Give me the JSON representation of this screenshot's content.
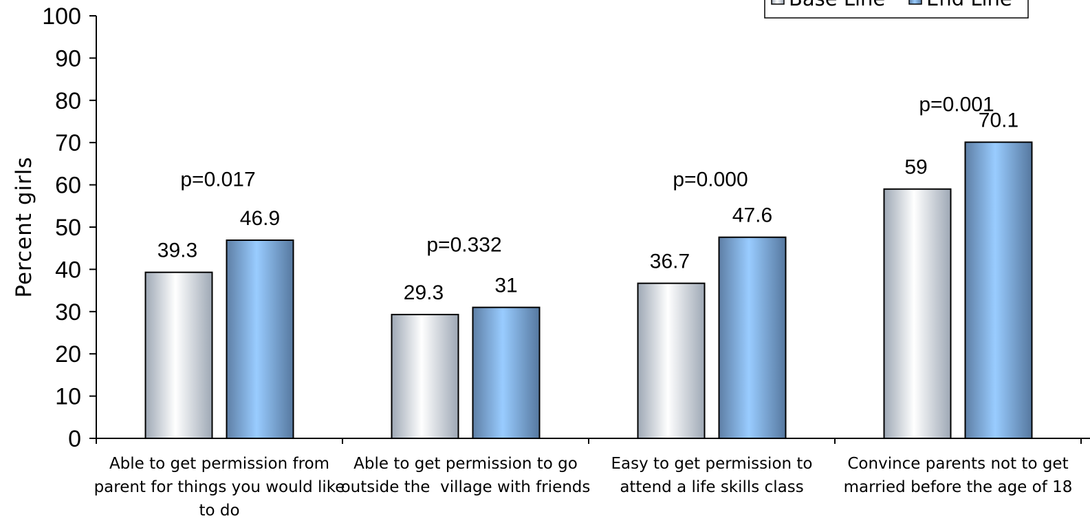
{
  "chart_data": {
    "type": "bar",
    "ylabel": "Percent girls",
    "xlabel": "",
    "ylim": [
      0,
      100
    ],
    "yticks": [
      0,
      10,
      20,
      30,
      40,
      50,
      60,
      70,
      80,
      90,
      100
    ],
    "grid": false,
    "legend_position": "top-right",
    "categories": [
      [
        "Able to get permission from",
        "parent for things you would like",
        "to do"
      ],
      [
        "Able to get permission to go",
        "outside the  village with friends"
      ],
      [
        "Easy to get permission to",
        "attend a life skills class"
      ],
      [
        "Convince parents not to get",
        "married before the age of 18"
      ]
    ],
    "series": [
      {
        "name": "Base Line",
        "values": [
          39.3,
          29.3,
          36.7,
          59
        ],
        "labels": [
          "39.3",
          "29.3",
          "36.7",
          "59"
        ],
        "color": "#ffffff"
      },
      {
        "name": "End Line",
        "values": [
          46.9,
          31,
          47.6,
          70.1
        ],
        "labels": [
          "46.9",
          "31",
          "47.6",
          "70.1"
        ],
        "color": "#99ccff"
      }
    ],
    "annotations": [
      {
        "text": "p=0.017",
        "value": 61.5
      },
      {
        "text": "p=0.332",
        "value": 46
      },
      {
        "text": "p=0.000",
        "value": 61.5
      },
      {
        "text": "p=0.001",
        "value": 79.2
      }
    ]
  }
}
